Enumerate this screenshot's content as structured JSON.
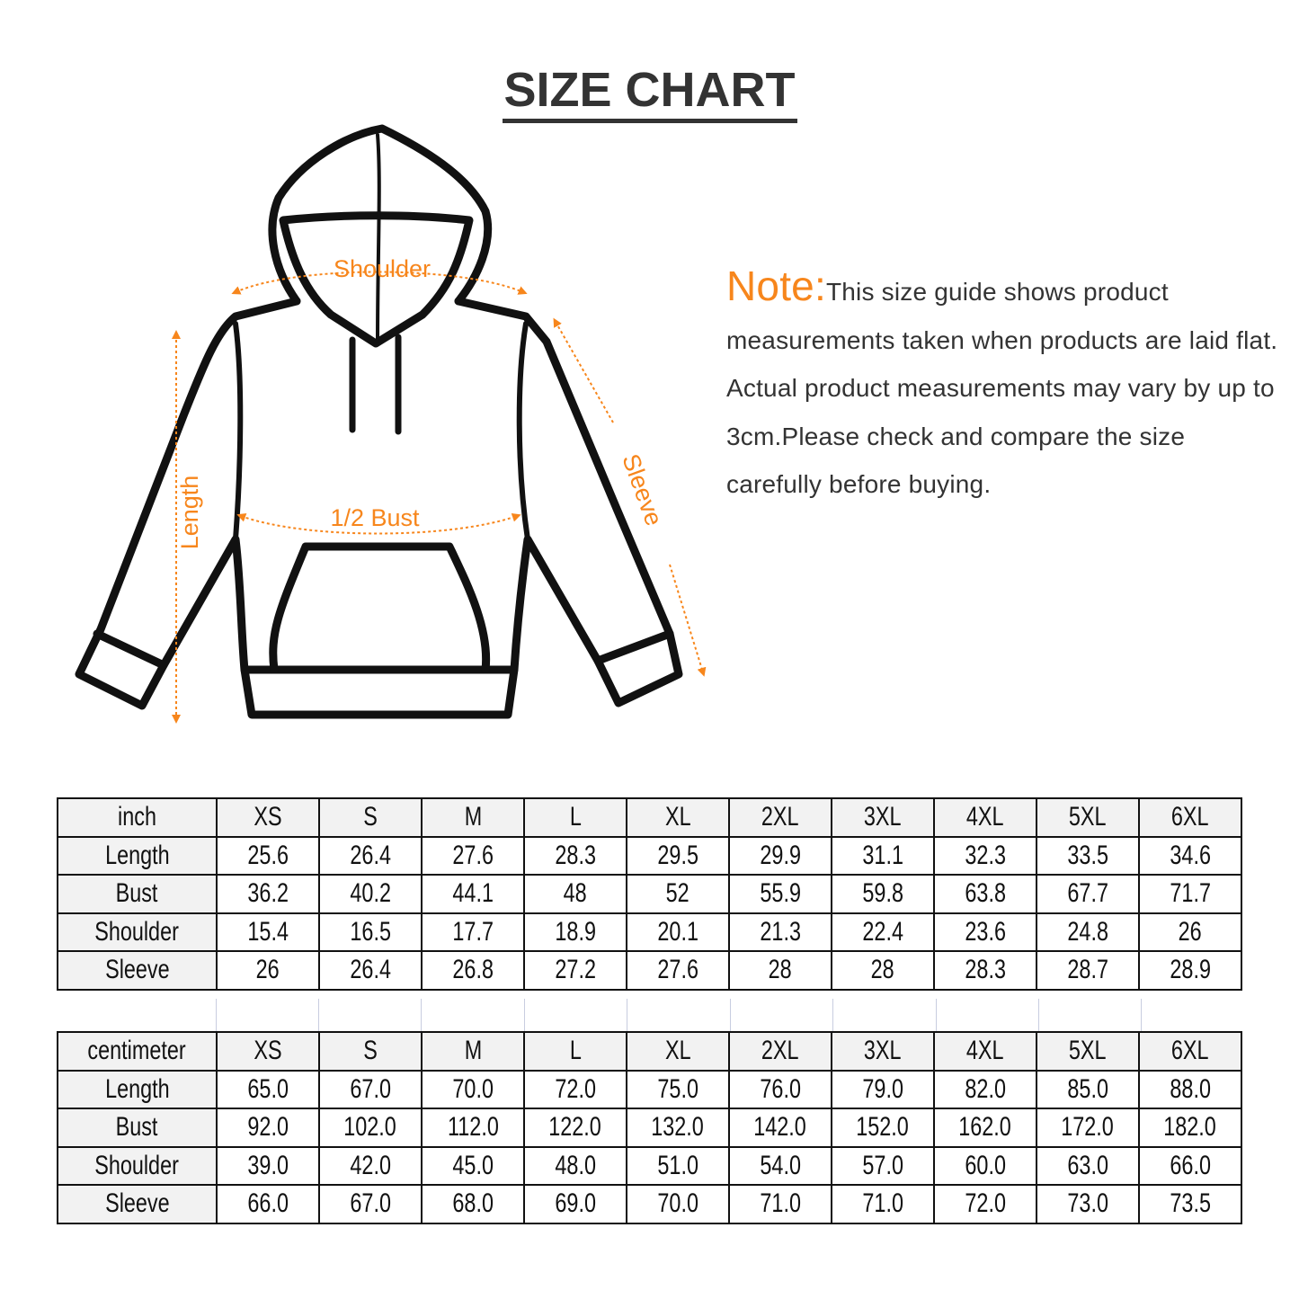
{
  "title": "SIZE CHART",
  "labels": {
    "shoulder": "Shoulder",
    "length": "Length",
    "bust": "1/2 Bust",
    "sleeve": "Sleeve"
  },
  "note": {
    "heading": "Note:",
    "text": "This size guide shows product measurements taken when products are laid flat. Actual product measurements may vary by up to 3cm.Please check and compare the size carefully before buying."
  },
  "colors": {
    "accent": "#f7861c",
    "text": "#333333",
    "header_bg": "#f2f2f2"
  },
  "inch_table": {
    "headers": [
      "inch",
      "XS",
      "S",
      "M",
      "L",
      "XL",
      "2XL",
      "3XL",
      "4XL",
      "5XL",
      "6XL"
    ],
    "rows": [
      [
        "Length",
        "25.6",
        "26.4",
        "27.6",
        "28.3",
        "29.5",
        "29.9",
        "31.1",
        "32.3",
        "33.5",
        "34.6"
      ],
      [
        "Bust",
        "36.2",
        "40.2",
        "44.1",
        "48",
        "52",
        "55.9",
        "59.8",
        "63.8",
        "67.7",
        "71.7"
      ],
      [
        "Shoulder",
        "15.4",
        "16.5",
        "17.7",
        "18.9",
        "20.1",
        "21.3",
        "22.4",
        "23.6",
        "24.8",
        "26"
      ],
      [
        "Sleeve",
        "26",
        "26.4",
        "26.8",
        "27.2",
        "27.6",
        "28",
        "28",
        "28.3",
        "28.7",
        "28.9"
      ]
    ]
  },
  "cm_table": {
    "headers": [
      "centimeter",
      "XS",
      "S",
      "M",
      "L",
      "XL",
      "2XL",
      "3XL",
      "4XL",
      "5XL",
      "6XL"
    ],
    "rows": [
      [
        "Length",
        "65.0",
        "67.0",
        "70.0",
        "72.0",
        "75.0",
        "76.0",
        "79.0",
        "82.0",
        "85.0",
        "88.0"
      ],
      [
        "Bust",
        "92.0",
        "102.0",
        "112.0",
        "122.0",
        "132.0",
        "142.0",
        "152.0",
        "162.0",
        "172.0",
        "182.0"
      ],
      [
        "Shoulder",
        "39.0",
        "42.0",
        "45.0",
        "48.0",
        "51.0",
        "54.0",
        "57.0",
        "60.0",
        "63.0",
        "66.0"
      ],
      [
        "Sleeve",
        "66.0",
        "67.0",
        "68.0",
        "69.0",
        "70.0",
        "71.0",
        "71.0",
        "72.0",
        "73.0",
        "73.5"
      ]
    ]
  }
}
